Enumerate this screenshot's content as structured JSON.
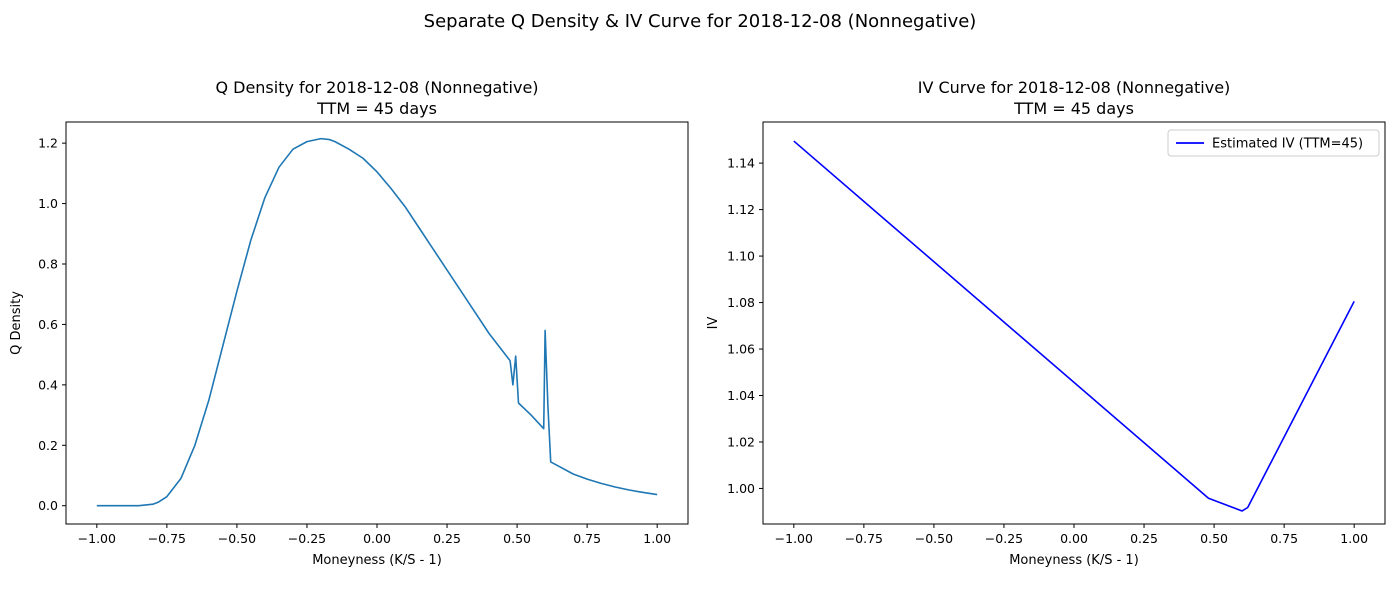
{
  "figure": {
    "suptitle": "Separate Q Density & IV Curve for 2018-12-08 (Nonnegative)"
  },
  "chart_data": [
    {
      "type": "line",
      "title": "Q Density for 2018-12-08 (Nonnegative)",
      "subtitle": "TTM = 45 days",
      "xlabel": "Moneyness (K/S - 1)",
      "ylabel": "Q Density",
      "xlim": [
        -1.11,
        1.11
      ],
      "ylim": [
        -0.0605,
        1.27
      ],
      "xticks": [
        -1.0,
        -0.75,
        -0.5,
        -0.25,
        0.0,
        0.25,
        0.5,
        0.75,
        1.0
      ],
      "xtick_labels": [
        "−1.00",
        "−0.75",
        "−0.50",
        "−0.25",
        "0.00",
        "0.25",
        "0.50",
        "0.75",
        "1.00"
      ],
      "yticks": [
        0.0,
        0.2,
        0.4,
        0.6,
        0.8,
        1.0,
        1.2
      ],
      "ytick_labels": [
        "0.0",
        "0.2",
        "0.4",
        "0.6",
        "0.8",
        "1.0",
        "1.2"
      ],
      "grid": false,
      "series": [
        {
          "color": "#1f77b4",
          "x": [
            -1.0,
            -0.9,
            -0.85,
            -0.8,
            -0.78,
            -0.75,
            -0.7,
            -0.65,
            -0.6,
            -0.55,
            -0.5,
            -0.45,
            -0.4,
            -0.35,
            -0.3,
            -0.25,
            -0.2,
            -0.17,
            -0.15,
            -0.1,
            -0.05,
            0.0,
            0.05,
            0.1,
            0.15,
            0.2,
            0.25,
            0.3,
            0.35,
            0.4,
            0.45,
            0.475,
            0.485,
            0.495,
            0.505,
            0.55,
            0.595,
            0.6,
            0.61,
            0.62,
            0.65,
            0.7,
            0.75,
            0.8,
            0.85,
            0.9,
            0.95,
            1.0
          ],
          "y": [
            0.0,
            0.0,
            0.0,
            0.005,
            0.012,
            0.03,
            0.09,
            0.2,
            0.35,
            0.53,
            0.71,
            0.88,
            1.02,
            1.12,
            1.18,
            1.205,
            1.215,
            1.212,
            1.205,
            1.18,
            1.15,
            1.105,
            1.05,
            0.99,
            0.92,
            0.85,
            0.78,
            0.71,
            0.64,
            0.57,
            0.51,
            0.48,
            0.4,
            0.495,
            0.34,
            0.3,
            0.255,
            0.58,
            0.33,
            0.145,
            0.13,
            0.105,
            0.088,
            0.074,
            0.062,
            0.052,
            0.044,
            0.037
          ]
        }
      ]
    },
    {
      "type": "line",
      "title": "IV Curve for 2018-12-08 (Nonnegative)",
      "subtitle": "TTM = 45 days",
      "xlabel": "Moneyness (K/S - 1)",
      "ylabel": "IV",
      "xlim": [
        -1.11,
        1.11
      ],
      "ylim": [
        0.9847,
        1.1577
      ],
      "xticks": [
        -1.0,
        -0.75,
        -0.5,
        -0.25,
        0.0,
        0.25,
        0.5,
        0.75,
        1.0
      ],
      "xtick_labels": [
        "−1.00",
        "−0.75",
        "−0.50",
        "−0.25",
        "0.00",
        "0.25",
        "0.50",
        "0.75",
        "1.00"
      ],
      "yticks": [
        1.0,
        1.02,
        1.04,
        1.06,
        1.08,
        1.1,
        1.12,
        1.14
      ],
      "ytick_labels": [
        "1.00",
        "1.02",
        "1.04",
        "1.06",
        "1.08",
        "1.10",
        "1.12",
        "1.14"
      ],
      "grid": false,
      "legend": "top-right",
      "series": [
        {
          "name": "Estimated IV (TTM=45)",
          "color": "#0000ff",
          "x": [
            -1.0,
            0.48,
            0.6,
            0.62,
            1.0
          ],
          "y": [
            1.1495,
            0.9958,
            0.9903,
            0.9918,
            1.0805
          ]
        }
      ]
    }
  ]
}
